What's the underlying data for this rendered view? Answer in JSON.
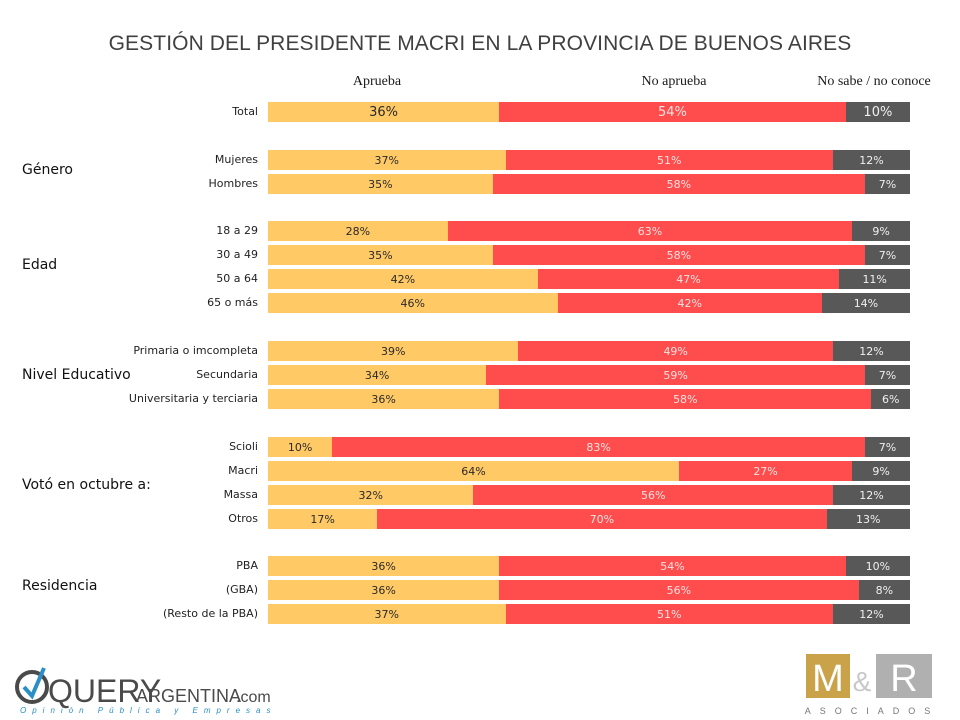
{
  "chart_data": {
    "type": "bar",
    "orientation": "horizontal",
    "stacked": true,
    "title": "GESTIÓN DEL PRESIDENTE MACRI EN LA PROVINCIA DE BUENOS AIRES",
    "series_names": [
      "Aprueba",
      "No aprueba",
      "No sabe / no conoce"
    ],
    "colors": {
      "approve": "#FFC966",
      "disapprove": "#FF4C4C",
      "unknown": "#585858"
    },
    "groups": [
      {
        "label": "",
        "rows": [
          {
            "label": "Total",
            "values": [
              36,
              54,
              10
            ],
            "big": true
          }
        ]
      },
      {
        "label": "Género",
        "rows": [
          {
            "label": "Mujeres",
            "values": [
              37,
              51,
              12
            ]
          },
          {
            "label": "Hombres",
            "values": [
              35,
              58,
              7
            ]
          }
        ]
      },
      {
        "label": "Edad",
        "rows": [
          {
            "label": "18 a 29",
            "values": [
              28,
              63,
              9
            ]
          },
          {
            "label": "30 a 49",
            "values": [
              35,
              58,
              7
            ]
          },
          {
            "label": "50 a 64",
            "values": [
              42,
              47,
              11
            ]
          },
          {
            "label": "65 o más",
            "values": [
              46,
              42,
              14
            ]
          }
        ]
      },
      {
        "label": "Nivel Educativo",
        "rows": [
          {
            "label": "Primaria o imcompleta",
            "values": [
              39,
              49,
              12
            ]
          },
          {
            "label": "Secundaria",
            "values": [
              34,
              59,
              7
            ]
          },
          {
            "label": "Universitaria y terciaria",
            "values": [
              36,
              58,
              6
            ]
          }
        ]
      },
      {
        "label": "Votó en octubre a:",
        "rows": [
          {
            "label": "Scioli",
            "values": [
              10,
              83,
              7
            ]
          },
          {
            "label": "Macri",
            "values": [
              64,
              27,
              9
            ]
          },
          {
            "label": "Massa",
            "values": [
              32,
              56,
              12
            ]
          },
          {
            "label": "Otros",
            "values": [
              17,
              70,
              13
            ]
          }
        ]
      },
      {
        "label": "Residencia",
        "rows": [
          {
            "label": "PBA",
            "values": [
              36,
              54,
              10
            ]
          },
          {
            "label": "(GBA)",
            "values": [
              36,
              56,
              8
            ]
          },
          {
            "label": "(Resto de la PBA)",
            "values": [
              37,
              51,
              12
            ]
          }
        ]
      }
    ],
    "value_suffix": "%",
    "xlim": [
      0,
      100
    ]
  },
  "logos": {
    "query": {
      "main": "QUERY",
      "sub": "ARGENTINA",
      "domain": ".com",
      "tagline": "Opinión Pública y Empresas"
    },
    "mr": {
      "m": "M",
      "amp": "&",
      "r": "R",
      "tagline": "ASOCIADOS"
    }
  }
}
